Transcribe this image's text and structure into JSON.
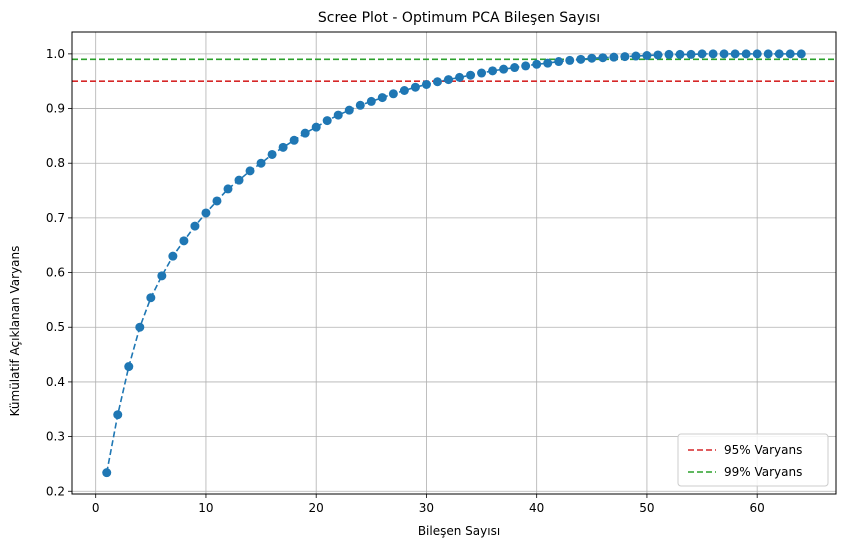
{
  "chart_data": {
    "type": "line",
    "title": "Scree Plot - Optimum PCA Bileşen Sayısı",
    "xlabel": "Bileşen Sayısı",
    "ylabel": "Kümülatif Açıklanan Varyans",
    "xlim": [
      -2.15,
      67.15
    ],
    "ylim": [
      0.195,
      1.04
    ],
    "x_ticks": [
      0,
      10,
      20,
      30,
      40,
      50,
      60
    ],
    "y_ticks": [
      0.2,
      0.3,
      0.4,
      0.5,
      0.6,
      0.7,
      0.8,
      0.9,
      1.0
    ],
    "x_tick_labels": [
      "0",
      "10",
      "20",
      "30",
      "40",
      "50",
      "60"
    ],
    "y_tick_labels": [
      "0.2",
      "0.3",
      "0.4",
      "0.5",
      "0.6",
      "0.7",
      "0.8",
      "0.9",
      "1.0"
    ],
    "grid": true,
    "legend_position": "bottom-right",
    "series": [
      {
        "color": "#1f77b4",
        "line_style": "dashed",
        "marker": "circle",
        "x": [
          1,
          2,
          3,
          4,
          5,
          6,
          7,
          8,
          9,
          10,
          11,
          12,
          13,
          14,
          15,
          16,
          17,
          18,
          19,
          20,
          21,
          22,
          23,
          24,
          25,
          26,
          27,
          28,
          29,
          30,
          31,
          32,
          33,
          34,
          35,
          36,
          37,
          38,
          39,
          40,
          41,
          42,
          43,
          44,
          45,
          46,
          47,
          48,
          49,
          50,
          51,
          52,
          53,
          54,
          55,
          56,
          57,
          58,
          59,
          60,
          61,
          62,
          63,
          64
        ],
        "values": [
          0.234,
          0.34,
          0.428,
          0.5,
          0.554,
          0.594,
          0.63,
          0.658,
          0.685,
          0.709,
          0.731,
          0.753,
          0.769,
          0.786,
          0.8,
          0.816,
          0.829,
          0.842,
          0.855,
          0.866,
          0.878,
          0.888,
          0.897,
          0.906,
          0.913,
          0.92,
          0.927,
          0.933,
          0.939,
          0.944,
          0.949,
          0.953,
          0.957,
          0.961,
          0.965,
          0.969,
          0.972,
          0.975,
          0.978,
          0.981,
          0.983,
          0.986,
          0.988,
          0.99,
          0.992,
          0.993,
          0.994,
          0.995,
          0.996,
          0.997,
          0.998,
          0.999,
          0.999,
          0.999,
          1.0,
          1.0,
          1.0,
          1.0,
          1.0,
          1.0,
          1.0,
          1.0,
          1.0,
          1.0
        ]
      }
    ],
    "reference_lines": [
      {
        "name": "95% Varyans",
        "value": 0.95,
        "color": "#d62728",
        "line_style": "dashed"
      },
      {
        "name": "99% Varyans",
        "value": 0.99,
        "color": "#2ca02c",
        "line_style": "dashed"
      }
    ]
  }
}
